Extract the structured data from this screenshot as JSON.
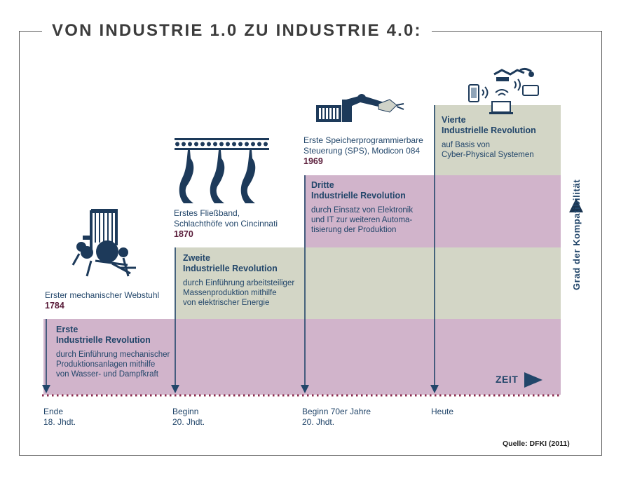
{
  "title": "VON INDUSTRIE 1.0 ZU INDUSTRIE 4.0:",
  "revolutions": [
    {
      "title_1": "Erste",
      "title_2": "Industrielle Revolution",
      "desc": [
        "durch Einführung mechanischer",
        "Produktionsanlagen mithilfe",
        "von Wasser- und Dampfkraft"
      ]
    },
    {
      "title_1": "Zweite",
      "title_2": "Industrielle Revolution",
      "desc": [
        "durch Einführung arbeitsteiliger",
        "Massenproduktion mithilfe",
        "von elektrischer Energie"
      ]
    },
    {
      "title_1": "Dritte",
      "title_2": "Industrielle Revolution",
      "desc": [
        "durch Einsatz von Elektronik",
        "und IT zur weiteren Automa-",
        "tisierung der Produktion"
      ]
    },
    {
      "title_1": "Vierte",
      "title_2": "Industrielle Revolution",
      "desc": [
        "auf Basis von",
        "Cyber-Physical Systemen"
      ]
    }
  ],
  "inventions": [
    {
      "name": [
        "Erster mechanischer Webstuhl"
      ],
      "year": "1784"
    },
    {
      "name": [
        "Erstes Fließband,",
        "Schlachthöfe von Cincinnati"
      ],
      "year": "1870"
    },
    {
      "name": [
        "Erste Speicherprogrammierbare",
        "Steuerung (SPS), Modicon 084"
      ],
      "year": "1969"
    }
  ],
  "timeline": [
    {
      "line_1": "Ende",
      "line_2": "18. Jhdt."
    },
    {
      "line_1": "Beginn",
      "line_2": "20. Jhdt."
    },
    {
      "line_1": "Beginn 70er Jahre",
      "line_2": "20. Jhdt."
    },
    {
      "line_1": "Heute",
      "line_2": ""
    }
  ],
  "time_label": "ZEIT",
  "y_axis_label": "Grad der Kompatibilität",
  "source": "Quelle: DFKI (2011)",
  "colors": {
    "mauve": "#d1b4cb",
    "sage": "#d3d6c6",
    "navy": "#22466a",
    "dark_navy": "#1a3450",
    "maroon": "#8a2a4e"
  },
  "icons": [
    "loom-icon",
    "conveyor-belt-icon",
    "plc-robot-arm-icon",
    "cyber-physical-devices-icon"
  ]
}
